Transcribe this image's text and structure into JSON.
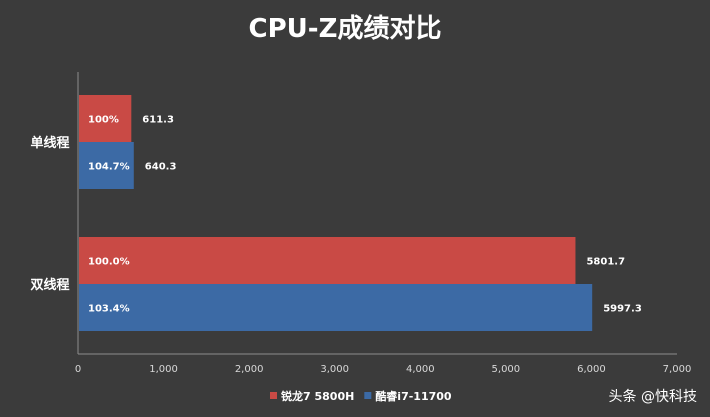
{
  "chart_data": {
    "type": "bar",
    "orientation": "horizontal",
    "title": "CPU-Z成绩对比",
    "categories": [
      "单线程",
      "双线程"
    ],
    "series": [
      {
        "name": "锐龙7 5800H",
        "color": "#c94a45",
        "values": [
          611.3,
          5801.7
        ],
        "labels": [
          "100%",
          "100.0%"
        ]
      },
      {
        "name": "酷睿i7-11700",
        "color": "#3c6aa5",
        "values": [
          640.3,
          5997.3
        ],
        "labels": [
          "104.7%",
          "103.4%"
        ]
      }
    ],
    "xlim": [
      0,
      7000
    ],
    "xticks": [
      "0",
      "1,000",
      "2,000",
      "3,000",
      "4,000",
      "5,000",
      "6,000",
      "7,000"
    ],
    "legend_position": "bottom",
    "grid": false
  },
  "watermark": "头条 @快科技"
}
